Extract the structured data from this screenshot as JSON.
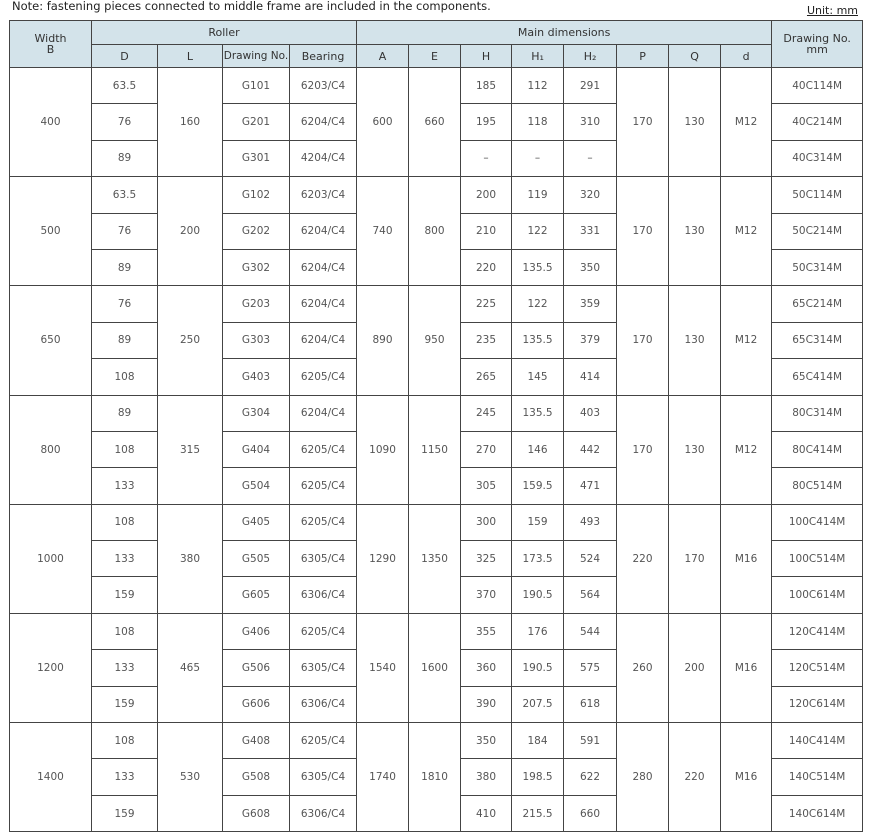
{
  "note": "Note: fastening pieces connected to middle frame are included in the components.",
  "unit": "Unit: mm",
  "header": {
    "width": "Width",
    "width_sub": "B",
    "roller": "Roller",
    "main": "Main dimensions",
    "drawing": "Drawing No.",
    "drawing_sub": "mm",
    "cols": [
      "D",
      "L",
      "Drawing No.",
      "Bearing",
      "A",
      "E",
      "H",
      "H₁",
      "H₂",
      "P",
      "Q",
      "d"
    ]
  },
  "groups": [
    {
      "B": "400",
      "L": "160",
      "A": "600",
      "E": "660",
      "P": "170",
      "Q": "130",
      "d": "M12",
      "rows": [
        [
          "63.5",
          "G101",
          "6203/C4",
          "185",
          "112",
          "291",
          "40C114M"
        ],
        [
          "76",
          "G201",
          "6204/C4",
          "195",
          "118",
          "310",
          "40C214M"
        ],
        [
          "89",
          "G301",
          "4204/C4",
          "–",
          "–",
          "–",
          "40C314M"
        ]
      ]
    },
    {
      "B": "500",
      "L": "200",
      "A": "740",
      "E": "800",
      "P": "170",
      "Q": "130",
      "d": "M12",
      "rows": [
        [
          "63.5",
          "G102",
          "6203/C4",
          "200",
          "119",
          "320",
          "50C114M"
        ],
        [
          "76",
          "G202",
          "6204/C4",
          "210",
          "122",
          "331",
          "50C214M"
        ],
        [
          "89",
          "G302",
          "6204/C4",
          "220",
          "135.5",
          "350",
          "50C314M"
        ]
      ]
    },
    {
      "B": "650",
      "L": "250",
      "A": "890",
      "E": "950",
      "P": "170",
      "Q": "130",
      "d": "M12",
      "rows": [
        [
          "76",
          "G203",
          "6204/C4",
          "225",
          "122",
          "359",
          "65C214M"
        ],
        [
          "89",
          "G303",
          "6204/C4",
          "235",
          "135.5",
          "379",
          "65C314M"
        ],
        [
          "108",
          "G403",
          "6205/C4",
          "265",
          "145",
          "414",
          "65C414M"
        ]
      ]
    },
    {
      "B": "800",
      "L": "315",
      "A": "1090",
      "E": "1150",
      "P": "170",
      "Q": "130",
      "d": "M12",
      "rows": [
        [
          "89",
          "G304",
          "6204/C4",
          "245",
          "135.5",
          "403",
          "80C314M"
        ],
        [
          "108",
          "G404",
          "6205/C4",
          "270",
          "146",
          "442",
          "80C414M"
        ],
        [
          "133",
          "G504",
          "6205/C4",
          "305",
          "159.5",
          "471",
          "80C514M"
        ]
      ]
    },
    {
      "B": "1000",
      "L": "380",
      "A": "1290",
      "E": "1350",
      "P": "220",
      "Q": "170",
      "d": "M16",
      "rows": [
        [
          "108",
          "G405",
          "6205/C4",
          "300",
          "159",
          "493",
          "100C414M"
        ],
        [
          "133",
          "G505",
          "6305/C4",
          "325",
          "173.5",
          "524",
          "100C514M"
        ],
        [
          "159",
          "G605",
          "6306/C4",
          "370",
          "190.5",
          "564",
          "100C614M"
        ]
      ]
    },
    {
      "B": "1200",
      "L": "465",
      "A": "1540",
      "E": "1600",
      "P": "260",
      "Q": "200",
      "d": "M16",
      "rows": [
        [
          "108",
          "G406",
          "6205/C4",
          "355",
          "176",
          "544",
          "120C414M"
        ],
        [
          "133",
          "G506",
          "6305/C4",
          "360",
          "190.5",
          "575",
          "120C514M"
        ],
        [
          "159",
          "G606",
          "6306/C4",
          "390",
          "207.5",
          "618",
          "120C614M"
        ]
      ]
    },
    {
      "B": "1400",
      "L": "530",
      "A": "1740",
      "E": "1810",
      "P": "280",
      "Q": "220",
      "d": "M16",
      "rows": [
        [
          "108",
          "G408",
          "6205/C4",
          "350",
          "184",
          "591",
          "140C414M"
        ],
        [
          "133",
          "G508",
          "6305/C4",
          "380",
          "198.5",
          "622",
          "140C514M"
        ],
        [
          "159",
          "G608",
          "6306/C4",
          "410",
          "215.5",
          "660",
          "140C614M"
        ]
      ]
    }
  ]
}
